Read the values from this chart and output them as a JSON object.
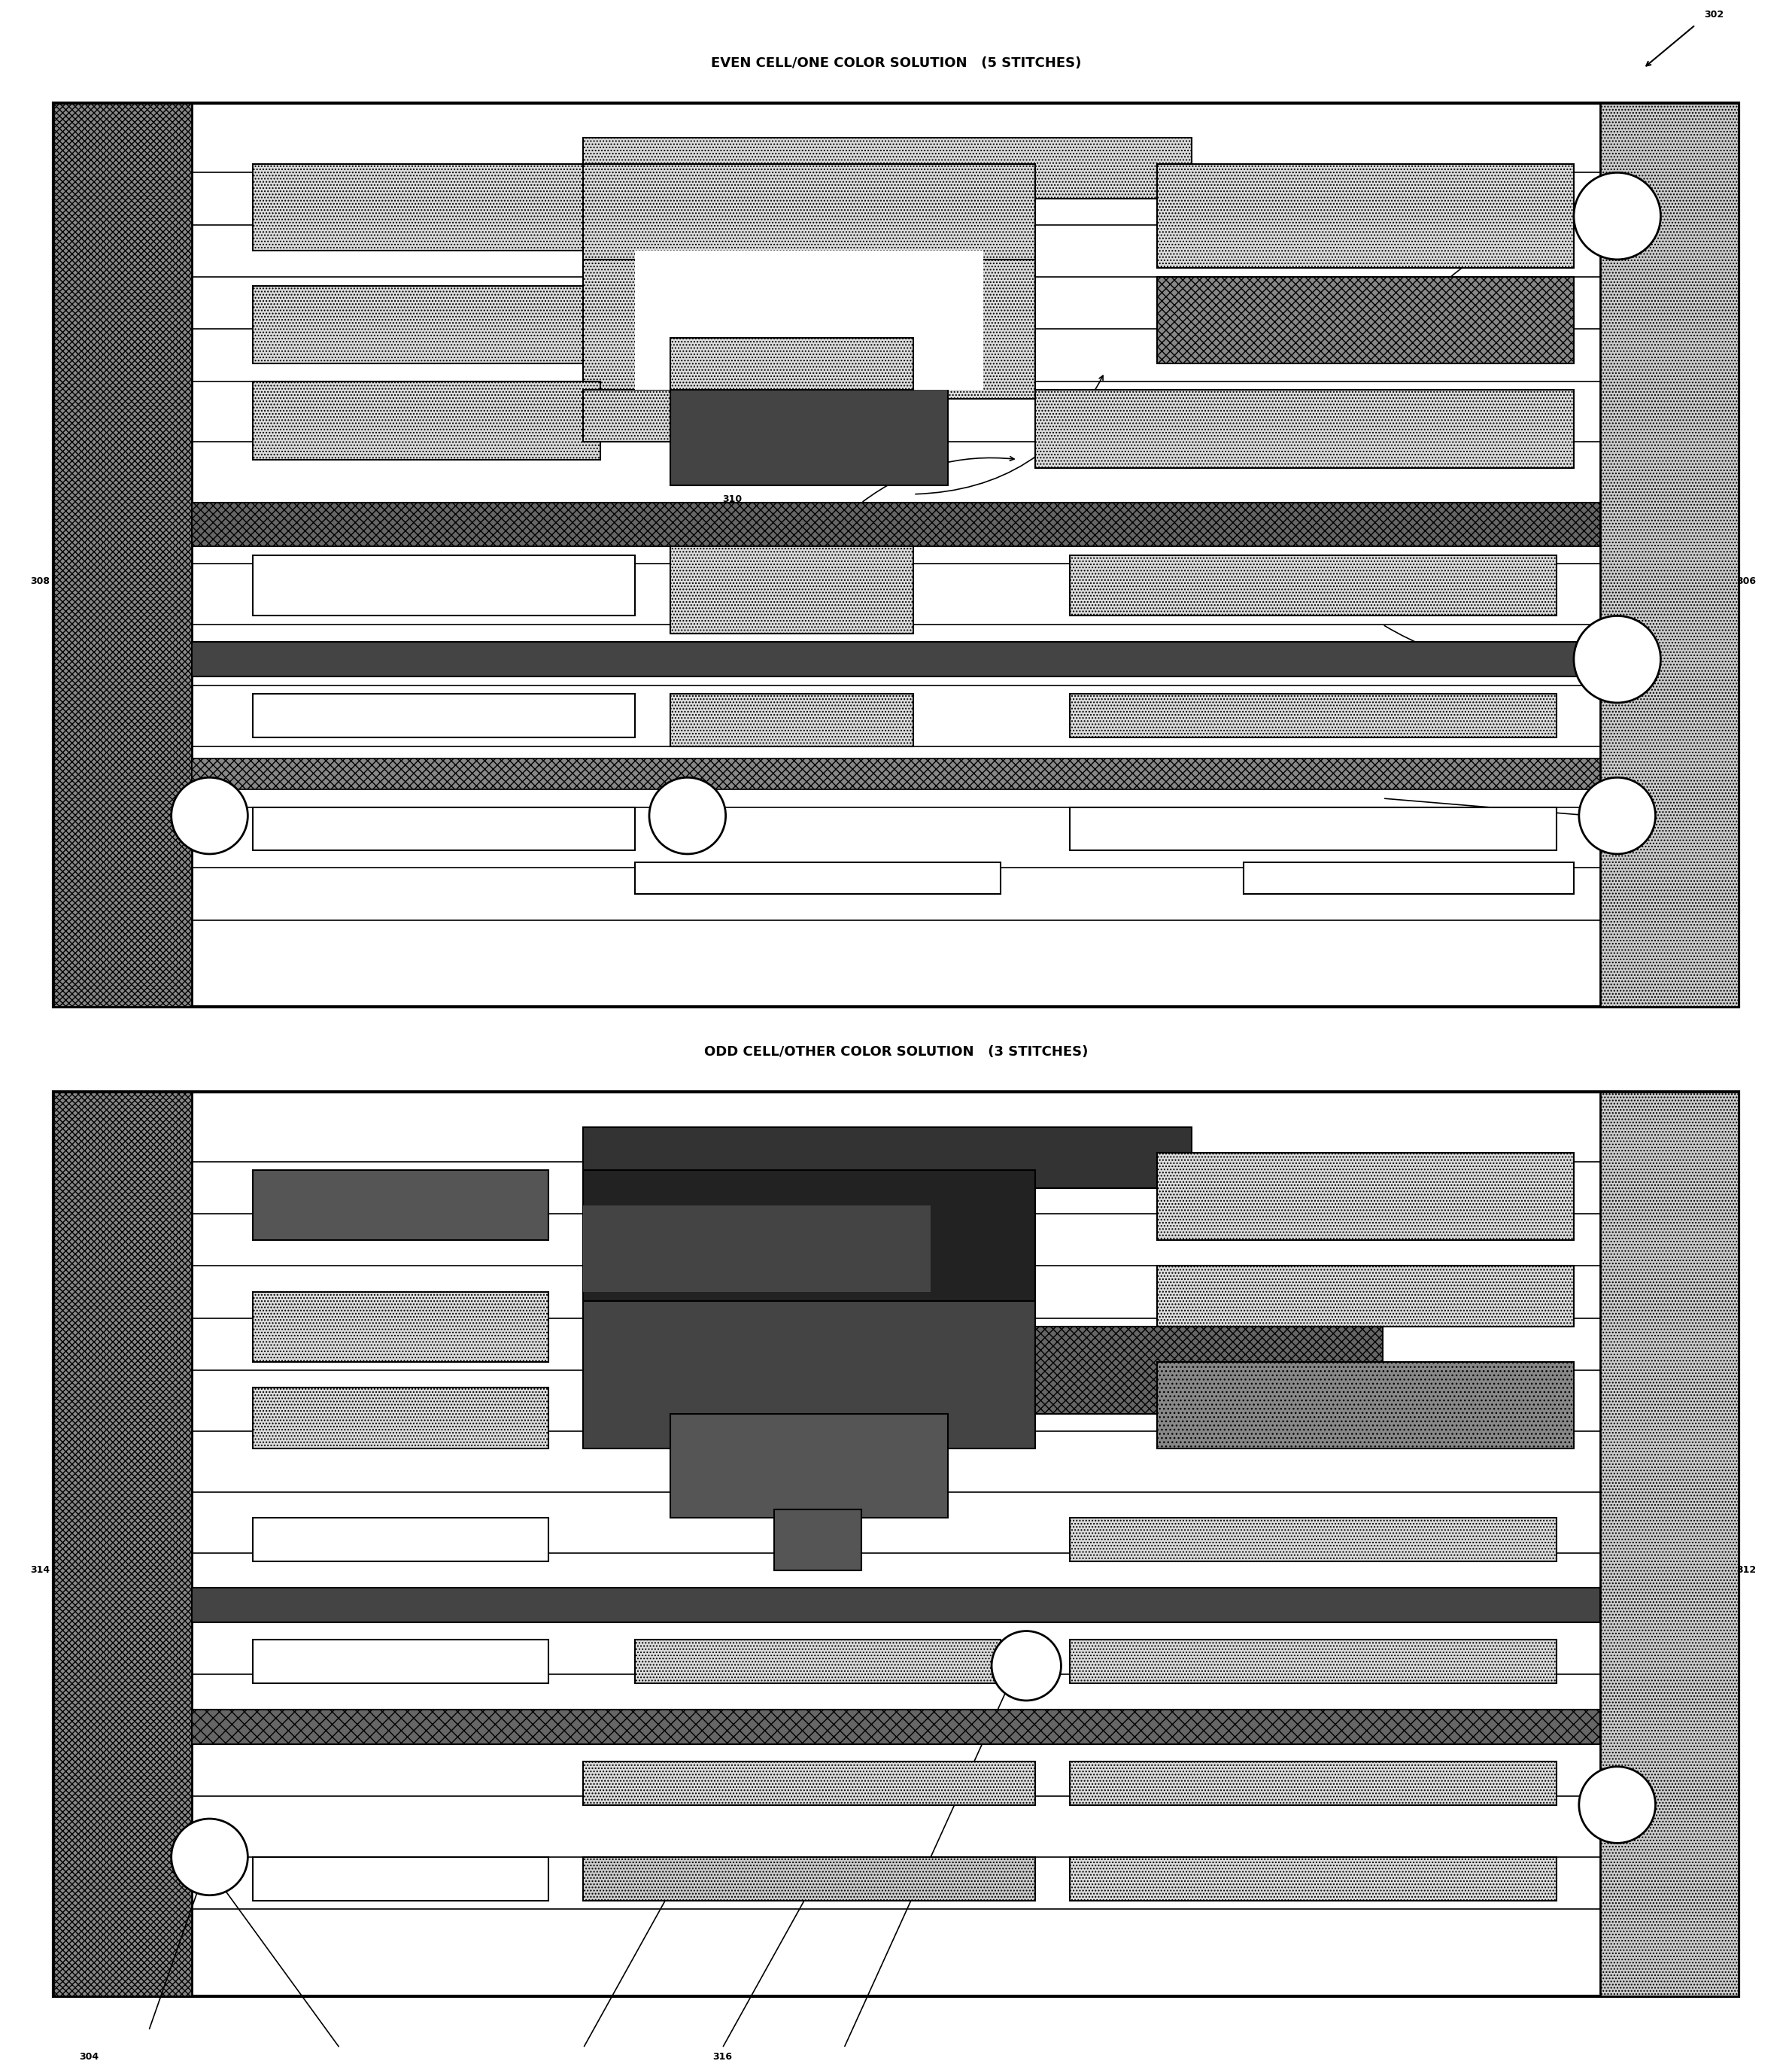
{
  "title1": "EVEN CELL/ONE COLOR SOLUTION   (5 STITCHES)",
  "title2": "ODD CELL/OTHER COLOR SOLUTION   (3 STITCHES)",
  "label_302": "302",
  "label_304": "304",
  "label_306": "306",
  "label_308": "308",
  "label_310": "310",
  "label_312": "312",
  "label_314": "314",
  "label_316": "316",
  "bg_color": "#ffffff",
  "outer_border_color": "#000000",
  "dark_gray": "#555555",
  "medium_gray": "#888888",
  "light_gray": "#bbbbbb",
  "dotted_fill": "#cccccc",
  "dark_fill": "#444444",
  "black": "#000000"
}
